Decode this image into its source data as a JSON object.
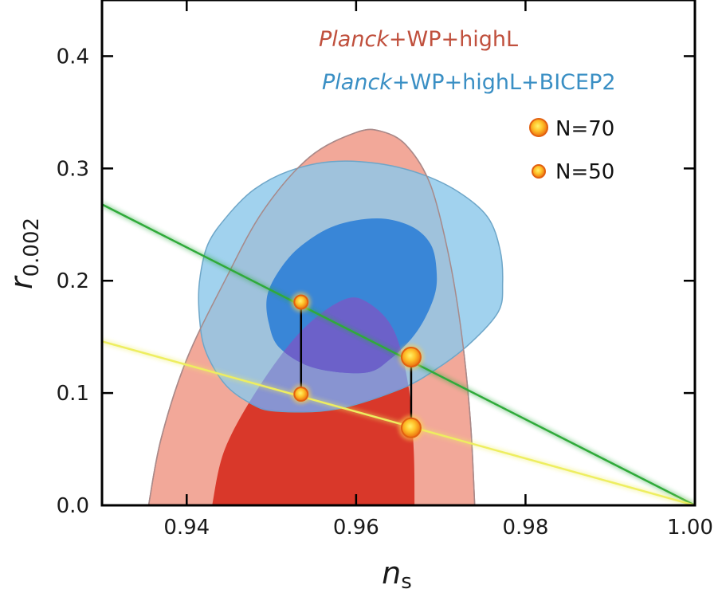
{
  "chart_data": {
    "type": "contour",
    "xlabel": "n",
    "xlabel_sub": "s",
    "ylabel": "r",
    "ylabel_sub": "0.002",
    "xlim": [
      0.93,
      1.0
    ],
    "ylim": [
      0.0,
      0.45
    ],
    "xticks": [
      0.94,
      0.96,
      0.98,
      1.0
    ],
    "xtick_labels": [
      "0.94",
      "0.96",
      "0.98",
      "1.00"
    ],
    "yticks": [
      0.0,
      0.1,
      0.2,
      0.3,
      0.4
    ],
    "ytick_labels": [
      "0.0",
      "0.1",
      "0.2",
      "0.3",
      "0.4"
    ],
    "colors": {
      "red_outer": "#f2a899",
      "red_inner": "#d9382a",
      "blue_outer": "#8cc8ea",
      "blue_inner": "#2e7fd6",
      "overlap_inner": "#6b5fc8",
      "green_line": "#2faa3a",
      "yellow_line": "#eeee60",
      "legend_red": "#c0503d",
      "legend_blue": "#3a8fc4",
      "marker_fill": "#f07a10",
      "marker_core": "#fff05a"
    },
    "contours": [
      {
        "name": "Planck+WP+highL",
        "name_italic": "Planck",
        "name_rest": "+WP+highL",
        "levels": [
          {
            "level": "95%",
            "points": [
              [
                0.9355,
                0.0
              ],
              [
                0.937,
                0.06
              ],
              [
                0.94,
                0.13
              ],
              [
                0.9445,
                0.2
              ],
              [
                0.949,
                0.262
              ],
              [
                0.9545,
                0.31
              ],
              [
                0.96,
                0.332
              ],
              [
                0.963,
                0.333
              ],
              [
                0.966,
                0.32
              ],
              [
                0.9688,
                0.285
              ],
              [
                0.971,
                0.22
              ],
              [
                0.9725,
                0.15
              ],
              [
                0.9735,
                0.075
              ],
              [
                0.974,
                0.0
              ]
            ]
          },
          {
            "level": "68%",
            "points": [
              [
                0.943,
                0.0
              ],
              [
                0.9445,
                0.05
              ],
              [
                0.9485,
                0.105
              ],
              [
                0.9535,
                0.155
              ],
              [
                0.9585,
                0.183
              ],
              [
                0.9615,
                0.18
              ],
              [
                0.9645,
                0.155
              ],
              [
                0.9662,
                0.105
              ],
              [
                0.9668,
                0.05
              ],
              [
                0.9669,
                0.0
              ]
            ]
          }
        ]
      },
      {
        "name": "Planck+WP+highL+BICEP2",
        "name_italic": "Planck",
        "name_rest": "+WP+highL+BICEP2",
        "levels": [
          {
            "level": "95%",
            "points": [
              [
                0.9415,
                0.1985
              ],
              [
                0.9425,
                0.2325
              ],
              [
                0.945,
                0.2595
              ],
              [
                0.948,
                0.2815
              ],
              [
                0.952,
                0.2975
              ],
              [
                0.957,
                0.306
              ],
              [
                0.9625,
                0.3045
              ],
              [
                0.9675,
                0.2955
              ],
              [
                0.972,
                0.2795
              ],
              [
                0.9755,
                0.257
              ],
              [
                0.977,
                0.2275
              ],
              [
                0.9773,
                0.1975
              ],
              [
                0.9768,
                0.1725
              ],
              [
                0.9735,
                0.1445
              ],
              [
                0.9695,
                0.1215
              ],
              [
                0.9652,
                0.1035
              ],
              [
                0.9575,
                0.0855
              ],
              [
                0.9505,
                0.084
              ],
              [
                0.9475,
                0.091
              ],
              [
                0.9445,
                0.108
              ],
              [
                0.9422,
                0.138
              ],
              [
                0.9415,
                0.168
              ]
            ]
          },
          {
            "level": "68%",
            "points": [
              [
                0.9495,
                0.1865
              ],
              [
                0.951,
                0.21
              ],
              [
                0.9535,
                0.231
              ],
              [
                0.9575,
                0.249
              ],
              [
                0.9625,
                0.2555
              ],
              [
                0.9665,
                0.2485
              ],
              [
                0.9688,
                0.2325
              ],
              [
                0.9695,
                0.209
              ],
              [
                0.9692,
                0.1855
              ],
              [
                0.9672,
                0.155
              ],
              [
                0.964,
                0.13
              ],
              [
                0.961,
                0.118
              ],
              [
                0.955,
                0.1225
              ],
              [
                0.951,
                0.14
              ],
              [
                0.9497,
                0.162
              ]
            ]
          }
        ]
      }
    ],
    "lines": [
      {
        "id": "green",
        "points": [
          [
            0.93,
            0.268
          ],
          [
            1.0,
            0.0
          ]
        ]
      },
      {
        "id": "yellow",
        "points": [
          [
            0.93,
            0.146
          ],
          [
            1.0,
            0.0
          ]
        ]
      }
    ],
    "markers": [
      {
        "label": "N=70",
        "size": "large",
        "points": [
          [
            0.9665,
            0.132
          ],
          [
            0.9665,
            0.069
          ]
        ]
      },
      {
        "label": "N=50",
        "size": "small",
        "points": [
          [
            0.9535,
            0.181
          ],
          [
            0.9535,
            0.099
          ]
        ]
      }
    ],
    "legend_position": "top-right"
  }
}
